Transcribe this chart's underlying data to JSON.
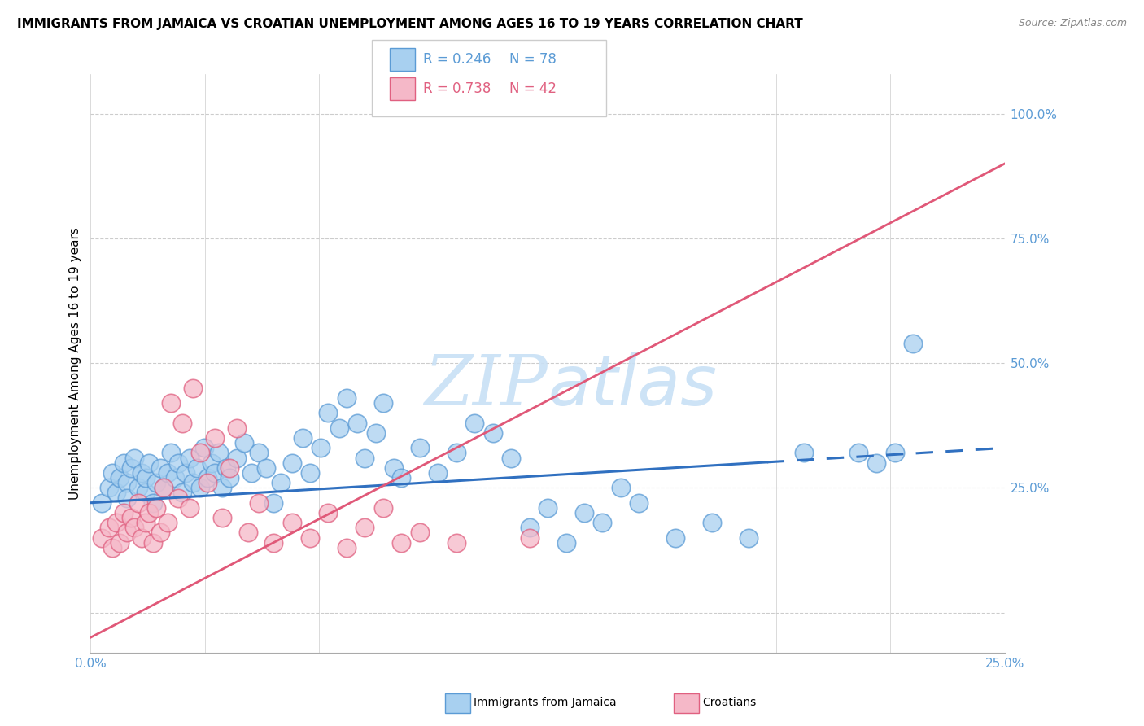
{
  "title": "IMMIGRANTS FROM JAMAICA VS CROATIAN UNEMPLOYMENT AMONG AGES 16 TO 19 YEARS CORRELATION CHART",
  "source": "Source: ZipAtlas.com",
  "ylabel": "Unemployment Among Ages 16 to 19 years",
  "ytick_positions": [
    0.0,
    0.25,
    0.5,
    0.75,
    1.0
  ],
  "ytick_labels": [
    "",
    "25.0%",
    "50.0%",
    "75.0%",
    "100.0%"
  ],
  "xlim": [
    0.0,
    0.25
  ],
  "ylim": [
    -0.08,
    1.08
  ],
  "legend_r1": "R = 0.246",
  "legend_n1": "N = 78",
  "legend_r2": "R = 0.738",
  "legend_n2": "N = 42",
  "color_jamaica": "#A8D0F0",
  "color_croatian": "#F5B8C8",
  "color_jamaica_edge": "#5B9BD5",
  "color_croatian_edge": "#E06080",
  "color_jamaica_line": "#3070C0",
  "color_croatian_line": "#E05878",
  "color_grid": "#CCCCCC",
  "watermark_color": "#C8E0F5",
  "background_color": "#FFFFFF",
  "title_fontsize": 11,
  "source_fontsize": 9,
  "ylabel_fontsize": 11,
  "tick_fontsize": 11,
  "legend_fontsize": 12,
  "jamaica_line_x0": 0.0,
  "jamaica_line_x1": 0.25,
  "jamaica_line_y0": 0.22,
  "jamaica_line_y1": 0.33,
  "jamaica_dash_split": 0.185,
  "croatian_line_x0": 0.0,
  "croatian_line_x1": 0.25,
  "croatian_line_y0": -0.05,
  "croatian_line_y1": 0.9,
  "jamaica_x": [
    0.003,
    0.005,
    0.006,
    0.007,
    0.008,
    0.009,
    0.01,
    0.01,
    0.011,
    0.012,
    0.013,
    0.014,
    0.015,
    0.015,
    0.016,
    0.017,
    0.018,
    0.019,
    0.02,
    0.021,
    0.022,
    0.023,
    0.024,
    0.025,
    0.026,
    0.027,
    0.028,
    0.029,
    0.03,
    0.031,
    0.032,
    0.033,
    0.034,
    0.035,
    0.036,
    0.037,
    0.038,
    0.04,
    0.042,
    0.044,
    0.046,
    0.048,
    0.05,
    0.052,
    0.055,
    0.058,
    0.06,
    0.063,
    0.065,
    0.068,
    0.07,
    0.073,
    0.075,
    0.078,
    0.08,
    0.083,
    0.085,
    0.09,
    0.095,
    0.1,
    0.105,
    0.11,
    0.115,
    0.12,
    0.125,
    0.13,
    0.135,
    0.14,
    0.145,
    0.15,
    0.16,
    0.17,
    0.18,
    0.195,
    0.21,
    0.215,
    0.22,
    0.225
  ],
  "jamaica_y": [
    0.22,
    0.25,
    0.28,
    0.24,
    0.27,
    0.3,
    0.26,
    0.23,
    0.29,
    0.31,
    0.25,
    0.28,
    0.24,
    0.27,
    0.3,
    0.22,
    0.26,
    0.29,
    0.25,
    0.28,
    0.32,
    0.27,
    0.3,
    0.24,
    0.28,
    0.31,
    0.26,
    0.29,
    0.25,
    0.33,
    0.27,
    0.3,
    0.28,
    0.32,
    0.25,
    0.29,
    0.27,
    0.31,
    0.34,
    0.28,
    0.32,
    0.29,
    0.22,
    0.26,
    0.3,
    0.35,
    0.28,
    0.33,
    0.4,
    0.37,
    0.43,
    0.38,
    0.31,
    0.36,
    0.42,
    0.29,
    0.27,
    0.33,
    0.28,
    0.32,
    0.38,
    0.36,
    0.31,
    0.17,
    0.21,
    0.14,
    0.2,
    0.18,
    0.25,
    0.22,
    0.15,
    0.18,
    0.15,
    0.32,
    0.32,
    0.3,
    0.32,
    0.54
  ],
  "croatian_x": [
    0.003,
    0.005,
    0.006,
    0.007,
    0.008,
    0.009,
    0.01,
    0.011,
    0.012,
    0.013,
    0.014,
    0.015,
    0.016,
    0.017,
    0.018,
    0.019,
    0.02,
    0.021,
    0.022,
    0.024,
    0.025,
    0.027,
    0.028,
    0.03,
    0.032,
    0.034,
    0.036,
    0.038,
    0.04,
    0.043,
    0.046,
    0.05,
    0.055,
    0.06,
    0.065,
    0.07,
    0.075,
    0.08,
    0.085,
    0.09,
    0.1,
    0.12
  ],
  "croatian_y": [
    0.15,
    0.17,
    0.13,
    0.18,
    0.14,
    0.2,
    0.16,
    0.19,
    0.17,
    0.22,
    0.15,
    0.18,
    0.2,
    0.14,
    0.21,
    0.16,
    0.25,
    0.18,
    0.42,
    0.23,
    0.38,
    0.21,
    0.45,
    0.32,
    0.26,
    0.35,
    0.19,
    0.29,
    0.37,
    0.16,
    0.22,
    0.14,
    0.18,
    0.15,
    0.2,
    0.13,
    0.17,
    0.21,
    0.14,
    0.16,
    0.14,
    0.15
  ]
}
